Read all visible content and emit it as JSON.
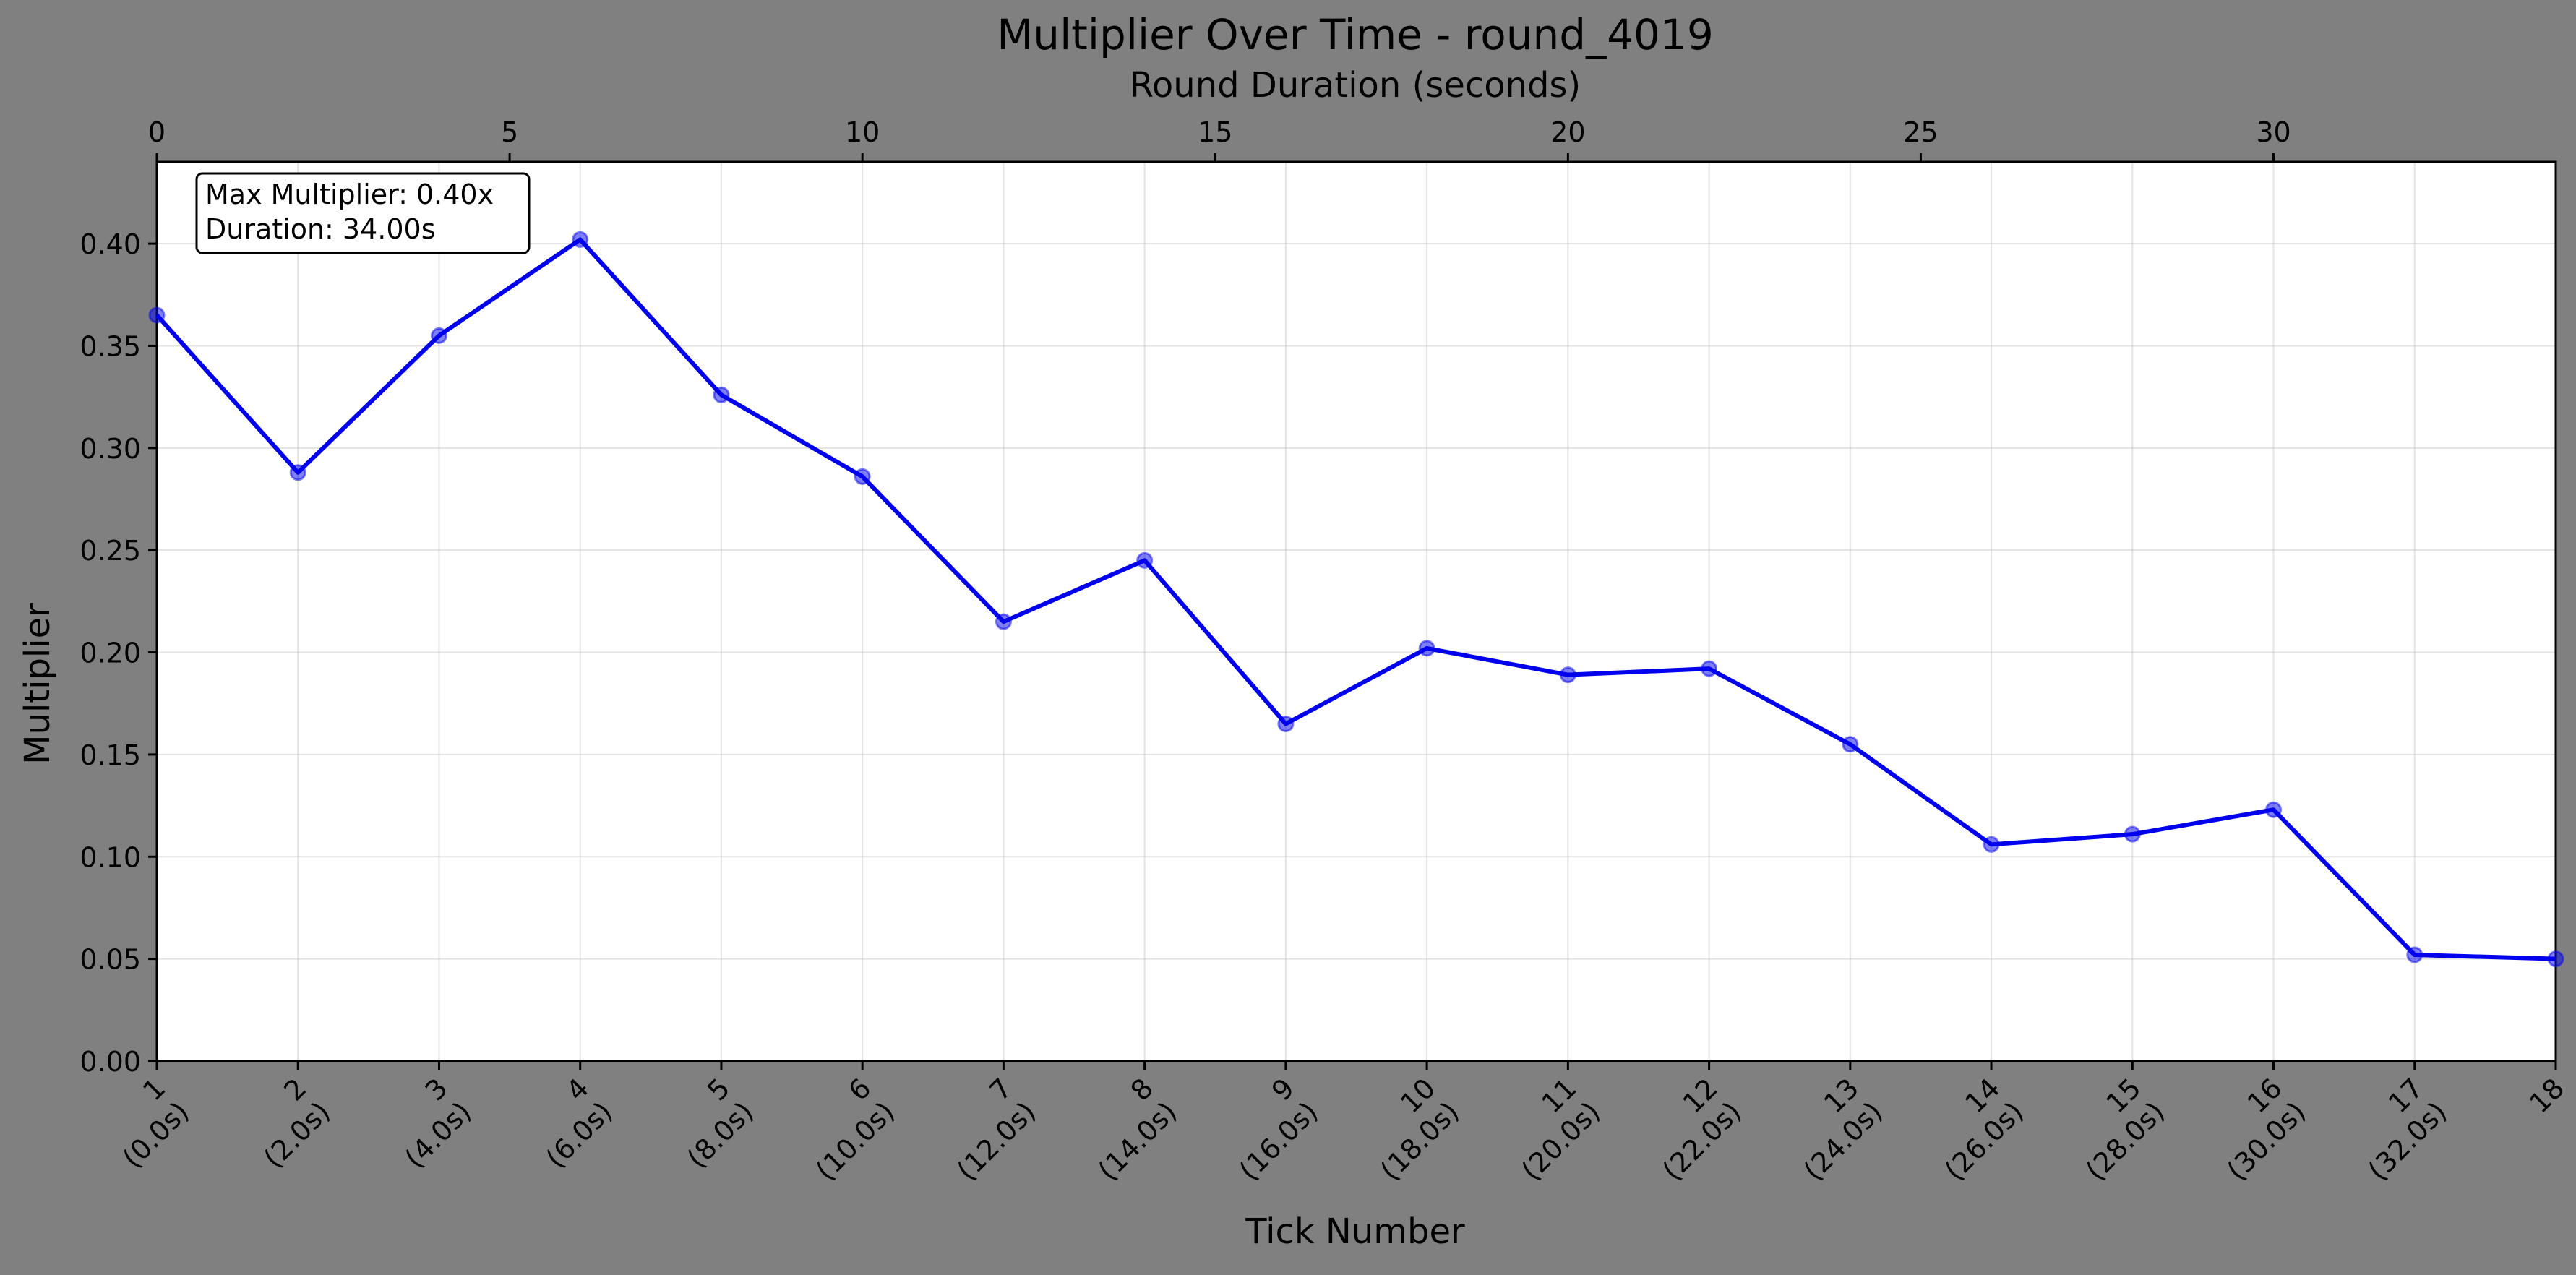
{
  "chart_data": {
    "type": "line",
    "title": "Multiplier Over Time - round_4019",
    "xlabel": "Tick Number",
    "ylabel": "Multiplier",
    "x2label": "Round Duration (seconds)",
    "categories": [
      "1\n(0.0s)",
      "2\n(2.0s)",
      "3\n(4.0s)",
      "4\n(6.0s)",
      "5\n(8.0s)",
      "6\n(10.0s)",
      "7\n(12.0s)",
      "8\n(14.0s)",
      "9\n(16.0s)",
      "10\n(18.0s)",
      "11\n(20.0s)",
      "12\n(22.0s)",
      "13\n(24.0s)",
      "14\n(26.0s)",
      "15\n(28.0s)",
      "16\n(30.0s)",
      "17\n(32.0s)",
      "18"
    ],
    "x": [
      0,
      2,
      4,
      6,
      8,
      10,
      12,
      14,
      16,
      18,
      20,
      22,
      24,
      26,
      28,
      30,
      32,
      34
    ],
    "series": [
      {
        "values": [
          0.365,
          0.288,
          0.355,
          0.402,
          0.326,
          0.286,
          0.215,
          0.245,
          0.165,
          0.202,
          0.189,
          0.192,
          0.155,
          0.106,
          0.111,
          0.123,
          0.052,
          0.05
        ],
        "color": "#0000ee"
      }
    ],
    "xlim": [
      0,
      34
    ],
    "ylim": [
      0,
      0.44
    ],
    "yticks": [
      "0.00",
      "0.05",
      "0.10",
      "0.15",
      "0.20",
      "0.25",
      "0.30",
      "0.35",
      "0.40"
    ],
    "x2ticks": [
      "0",
      "5",
      "10",
      "15",
      "20",
      "25",
      "30"
    ],
    "x2tick_values": [
      0,
      5,
      10,
      15,
      20,
      25,
      30
    ],
    "x2lim": [
      0,
      34
    ],
    "grid": true,
    "annotation": [
      "Max Multiplier: 0.40x",
      "Duration: 34.00s"
    ],
    "annotation_position": "top-left"
  }
}
